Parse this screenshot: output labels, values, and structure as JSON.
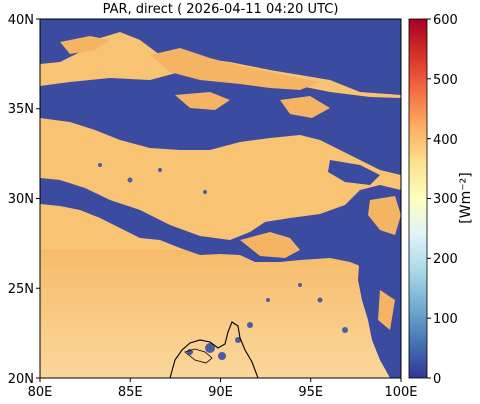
{
  "title": "PAR, direct ( 2026-04-11 04:20 UTC)",
  "map": {
    "lon_range": [
      80,
      100
    ],
    "lat_range": [
      20,
      40
    ],
    "x_ticks": [
      "80E",
      "85E",
      "90E",
      "95E",
      "100E"
    ],
    "y_ticks": [
      "20N",
      "25N",
      "30N",
      "35N",
      "40N"
    ]
  },
  "colorbar": {
    "label": "[Wm⁻²]",
    "min": 0,
    "max": 600,
    "ticks": [
      "0",
      "100",
      "200",
      "300",
      "400",
      "500",
      "600"
    ],
    "colormap": "RdYlBu_r",
    "colors": [
      "#313695",
      "#4575b4",
      "#74add1",
      "#abd9e9",
      "#e0f3f8",
      "#ffffbf",
      "#fee090",
      "#fdae61",
      "#f46d43",
      "#d73027",
      "#a50026"
    ]
  },
  "colors": {
    "clear_sky": "#f8c373",
    "cloud": "#3b4ba0",
    "coast": "#000000"
  }
}
